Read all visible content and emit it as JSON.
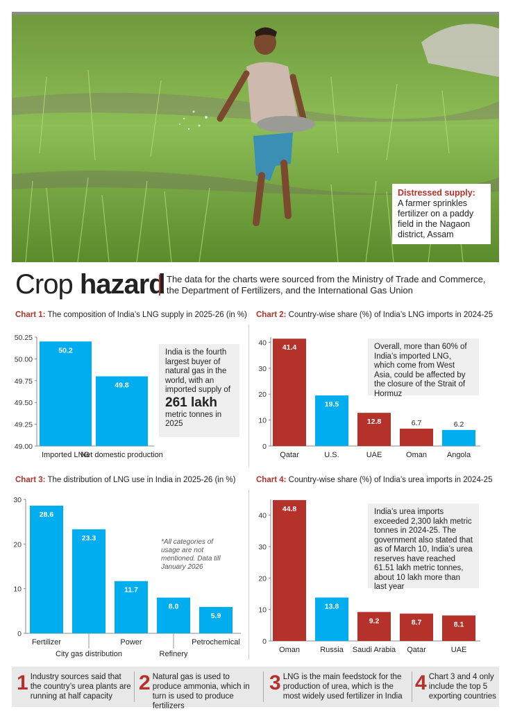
{
  "photo": {
    "caption_title": "Distressed supply:",
    "caption_text": "A farmer sprinkles fertilizer on a paddy field in the Nagaon district, Assam"
  },
  "header": {
    "title_light": "Crop ",
    "title_bold": "hazard",
    "subtitle": "The data for the charts were sourced from the Ministry of Trade and Commerce, the Department of Fertilizers, and the International Gas Union"
  },
  "colors": {
    "blue": "#00aeef",
    "red": "#b5322b",
    "note_bg": "#efefef"
  },
  "chart_data": [
    {
      "id": "chart1",
      "type": "bar",
      "label": "Chart 1:",
      "title": "The composition of India’s LNG supply in 2025-26 (in %)",
      "categories": [
        "Imported LNG",
        "Net domestic production"
      ],
      "values": [
        50.2,
        49.8
      ],
      "value_labels": [
        "50.2",
        "49.8"
      ],
      "colors": [
        "#00aeef",
        "#00aeef"
      ],
      "ylim": [
        49.0,
        50.25
      ],
      "yticks": [
        "50.25",
        "50.00",
        "49.75",
        "49.50",
        "49.25",
        "49.00"
      ],
      "note": {
        "text1": "India is the fourth largest buyer of natural gas in the world, with an imported supply of",
        "big": "261 lakh",
        "text2": "metric tonnes in 2025"
      }
    },
    {
      "id": "chart2",
      "type": "bar",
      "label": "Chart 2:",
      "title": "Country-wise share (%) of India’s LNG imports in 2024-25",
      "categories": [
        "Qatar",
        "U.S.",
        "UAE",
        "Oman",
        "Angola"
      ],
      "values": [
        41.4,
        19.5,
        12.8,
        6.7,
        6.2
      ],
      "value_labels": [
        "41.4",
        "19.5",
        "12.8",
        "6.7",
        "6.2"
      ],
      "colors": [
        "#b5322b",
        "#00aeef",
        "#b5322b",
        "#b5322b",
        "#00aeef"
      ],
      "ylim": [
        0,
        42
      ],
      "yticks": [
        "40",
        "30",
        "20",
        "10",
        "0"
      ],
      "note": {
        "text1": "Overall, more than 60% of India’s imported LNG, which come from West Asia, could be affected by the closure of the Strait of Hormuz"
      }
    },
    {
      "id": "chart3",
      "type": "bar",
      "label": "Chart 3:",
      "title": "The distribution of LNG use in India in 2025-26 (in %)",
      "categories": [
        "Fertilizer",
        "City gas distribution",
        "Power",
        "Refinery",
        "Petrochemical"
      ],
      "values": [
        28.6,
        23.3,
        11.7,
        8.0,
        5.9
      ],
      "value_labels": [
        "28.6",
        "23.3",
        "11.7",
        "8.0",
        "5.9"
      ],
      "colors": [
        "#00aeef",
        "#00aeef",
        "#00aeef",
        "#00aeef",
        "#00aeef"
      ],
      "ylim": [
        0,
        30
      ],
      "yticks": [
        "30",
        "20",
        "10",
        "0"
      ],
      "footnote": "*All categories of usage are not mentioned. Data till January 2026"
    },
    {
      "id": "chart4",
      "type": "bar",
      "label": "Chart 4:",
      "title": "Country-wise share (%) of India’s urea imports in 2024-25",
      "categories": [
        "Oman",
        "Russia",
        "Saudi Arabia",
        "Qatar",
        "UAE"
      ],
      "values": [
        44.8,
        13.8,
        9.2,
        8.7,
        8.1
      ],
      "value_labels": [
        "44.8",
        "13.8",
        "9.2",
        "8.7",
        "8.1"
      ],
      "colors": [
        "#b5322b",
        "#00aeef",
        "#b5322b",
        "#b5322b",
        "#b5322b"
      ],
      "ylim": [
        0,
        45
      ],
      "yticks": [
        "40",
        "30",
        "20",
        "10",
        "0"
      ],
      "note": {
        "text1": "India’s urea imports exceeded 2,300 lakh metric tonnes in 2024-25. The government also stated that as of March 10, India’s urea reserves have reached 61.51 lakh metric tonnes, about 10 lakh more than last year"
      }
    }
  ],
  "footer": [
    {
      "num": "1",
      "text": "Industry sources said that the country’s urea plants are running at half capacity"
    },
    {
      "num": "2",
      "text": "Natural gas is used to produce ammonia, which in turn is used to produce fertilizers"
    },
    {
      "num": "3",
      "text": "LNG is the main feedstock for the production of urea, which is the most widely used fertilizer in India"
    },
    {
      "num": "4",
      "text": "Chart 3 and 4 only include the top 5 exporting countries"
    }
  ]
}
